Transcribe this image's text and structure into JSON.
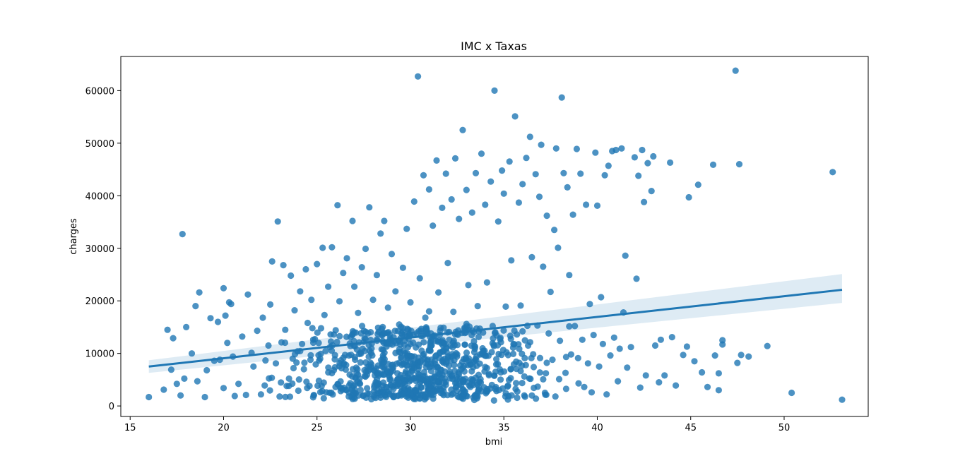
{
  "chart_data": {
    "type": "scatter",
    "title": "IMC x Taxas",
    "xlabel": "bmi",
    "ylabel": "charges",
    "xlim": [
      14.5,
      54.5
    ],
    "ylim": [
      -2000,
      66500
    ],
    "xticks": [
      15,
      20,
      25,
      30,
      35,
      40,
      45,
      50
    ],
    "yticks": [
      0,
      10000,
      20000,
      30000,
      40000,
      50000,
      60000
    ],
    "grid": false,
    "colors": {
      "points": "#1f77b4",
      "line": "#1f77b4",
      "band": "#1f77b4"
    },
    "regression": {
      "x": [
        16.0,
        53.1
      ],
      "y": [
        7500,
        22100
      ],
      "ci_lower": [
        6300,
        19600
      ],
      "ci_upper": [
        8700,
        25100
      ]
    },
    "points_sample_note": "",
    "points": [
      [
        16.0,
        1700
      ],
      [
        16.8,
        3100
      ],
      [
        17.0,
        14500
      ],
      [
        17.2,
        6900
      ],
      [
        17.3,
        12900
      ],
      [
        17.5,
        4200
      ],
      [
        17.7,
        2000
      ],
      [
        17.8,
        32700
      ],
      [
        17.9,
        5200
      ],
      [
        18.0,
        15000
      ],
      [
        18.3,
        10000
      ],
      [
        18.5,
        19000
      ],
      [
        18.6,
        4700
      ],
      [
        18.7,
        21600
      ],
      [
        19.0,
        1700
      ],
      [
        19.1,
        6800
      ],
      [
        19.3,
        16700
      ],
      [
        19.5,
        8600
      ],
      [
        19.7,
        16000
      ],
      [
        19.8,
        8800
      ],
      [
        20.0,
        3400
      ],
      [
        20.0,
        22400
      ],
      [
        20.1,
        17200
      ],
      [
        20.2,
        12000
      ],
      [
        20.3,
        19700
      ],
      [
        20.4,
        19400
      ],
      [
        20.5,
        9400
      ],
      [
        20.6,
        1900
      ],
      [
        20.8,
        4200
      ],
      [
        21.0,
        13200
      ],
      [
        21.2,
        2100
      ],
      [
        21.3,
        21200
      ],
      [
        21.5,
        10100
      ],
      [
        21.6,
        7500
      ],
      [
        21.8,
        14300
      ],
      [
        22.0,
        2200
      ],
      [
        22.1,
        16800
      ],
      [
        22.2,
        3900
      ],
      [
        22.4,
        11500
      ],
      [
        22.5,
        19300
      ],
      [
        22.6,
        27500
      ],
      [
        22.8,
        8100
      ],
      [
        22.9,
        35100
      ],
      [
        23.0,
        1800
      ],
      [
        23.1,
        12100
      ],
      [
        23.2,
        26800
      ],
      [
        23.3,
        14500
      ],
      [
        23.5,
        5200
      ],
      [
        23.6,
        24800
      ],
      [
        23.7,
        9000
      ],
      [
        23.8,
        18200
      ],
      [
        24.0,
        2900
      ],
      [
        24.1,
        21800
      ],
      [
        24.2,
        11800
      ],
      [
        24.3,
        7000
      ],
      [
        24.4,
        26000
      ],
      [
        24.5,
        15800
      ],
      [
        24.6,
        3800
      ],
      [
        24.7,
        20200
      ],
      [
        24.8,
        12600
      ],
      [
        25.0,
        27000
      ],
      [
        25.1,
        4800
      ],
      [
        25.2,
        9900
      ],
      [
        25.3,
        30100
      ],
      [
        25.4,
        17300
      ],
      [
        25.5,
        2600
      ],
      [
        25.6,
        22700
      ],
      [
        25.7,
        11200
      ],
      [
        25.8,
        30200
      ],
      [
        25.9,
        6800
      ],
      [
        26.0,
        14400
      ],
      [
        26.1,
        38200
      ],
      [
        26.2,
        19900
      ],
      [
        26.3,
        3400
      ],
      [
        26.4,
        25300
      ],
      [
        26.5,
        9700
      ],
      [
        26.6,
        28100
      ],
      [
        26.7,
        1800
      ],
      [
        26.8,
        13100
      ],
      [
        26.9,
        35200
      ],
      [
        27.0,
        22700
      ],
      [
        27.1,
        7300
      ],
      [
        27.2,
        17700
      ],
      [
        27.3,
        4200
      ],
      [
        27.4,
        26400
      ],
      [
        27.5,
        12200
      ],
      [
        27.6,
        29900
      ],
      [
        27.7,
        2300
      ],
      [
        27.8,
        37800
      ],
      [
        27.9,
        10100
      ],
      [
        28.0,
        20200
      ],
      [
        28.1,
        5800
      ],
      [
        28.2,
        24900
      ],
      [
        28.3,
        14100
      ],
      [
        28.4,
        32800
      ],
      [
        28.5,
        8400
      ],
      [
        28.6,
        35200
      ],
      [
        28.7,
        3600
      ],
      [
        28.8,
        18700
      ],
      [
        28.9,
        11800
      ],
      [
        29.0,
        28900
      ],
      [
        29.1,
        1700
      ],
      [
        29.2,
        21800
      ],
      [
        29.3,
        6200
      ],
      [
        29.4,
        15500
      ],
      [
        29.5,
        9300
      ],
      [
        29.6,
        26300
      ],
      [
        29.7,
        4100
      ],
      [
        29.8,
        33700
      ],
      [
        29.9,
        12800
      ],
      [
        30.0,
        19700
      ],
      [
        30.1,
        7400
      ],
      [
        30.2,
        38900
      ],
      [
        30.3,
        2800
      ],
      [
        30.4,
        62700
      ],
      [
        30.5,
        24300
      ],
      [
        30.6,
        10500
      ],
      [
        30.7,
        43900
      ],
      [
        30.8,
        16800
      ],
      [
        30.9,
        5100
      ],
      [
        31.0,
        41200
      ],
      [
        31.1,
        13800
      ],
      [
        31.2,
        34300
      ],
      [
        31.3,
        8600
      ],
      [
        31.4,
        46700
      ],
      [
        31.5,
        21600
      ],
      [
        31.6,
        3200
      ],
      [
        31.7,
        37700
      ],
      [
        31.8,
        11900
      ],
      [
        31.9,
        44200
      ],
      [
        32.0,
        27200
      ],
      [
        32.1,
        6500
      ],
      [
        32.2,
        39300
      ],
      [
        32.3,
        17900
      ],
      [
        32.4,
        47100
      ],
      [
        32.5,
        9800
      ],
      [
        32.6,
        35600
      ],
      [
        32.7,
        2400
      ],
      [
        32.8,
        52500
      ],
      [
        32.9,
        14700
      ],
      [
        33.0,
        41100
      ],
      [
        33.1,
        23000
      ],
      [
        33.2,
        7900
      ],
      [
        33.3,
        36800
      ],
      [
        33.4,
        12300
      ],
      [
        33.5,
        44300
      ],
      [
        33.6,
        19000
      ],
      [
        33.7,
        4600
      ],
      [
        33.8,
        48000
      ],
      [
        33.9,
        10400
      ],
      [
        34.0,
        38300
      ],
      [
        34.1,
        23500
      ],
      [
        34.2,
        6100
      ],
      [
        34.3,
        42700
      ],
      [
        34.4,
        15200
      ],
      [
        34.5,
        60000
      ],
      [
        34.6,
        8900
      ],
      [
        34.7,
        35100
      ],
      [
        34.8,
        12700
      ],
      [
        34.9,
        44800
      ],
      [
        35.0,
        40400
      ],
      [
        35.1,
        18900
      ],
      [
        35.2,
        3700
      ],
      [
        35.3,
        46500
      ],
      [
        35.4,
        27700
      ],
      [
        35.5,
        9900
      ],
      [
        35.6,
        55100
      ],
      [
        35.7,
        13600
      ],
      [
        35.8,
        38700
      ],
      [
        35.9,
        19100
      ],
      [
        36.0,
        42200
      ],
      [
        36.1,
        5600
      ],
      [
        36.2,
        47200
      ],
      [
        36.3,
        11500
      ],
      [
        36.4,
        51200
      ],
      [
        36.5,
        28300
      ],
      [
        36.6,
        7400
      ],
      [
        36.7,
        44100
      ],
      [
        36.8,
        15300
      ],
      [
        36.9,
        39800
      ],
      [
        37.0,
        49700
      ],
      [
        37.1,
        26500
      ],
      [
        37.2,
        2500
      ],
      [
        37.3,
        36200
      ],
      [
        37.4,
        13800
      ],
      [
        37.5,
        21700
      ],
      [
        37.6,
        8800
      ],
      [
        37.7,
        33500
      ],
      [
        37.8,
        49000
      ],
      [
        37.9,
        30100
      ],
      [
        38.0,
        12400
      ],
      [
        38.1,
        58700
      ],
      [
        38.2,
        44300
      ],
      [
        38.3,
        6300
      ],
      [
        38.4,
        41600
      ],
      [
        38.5,
        24900
      ],
      [
        38.6,
        9800
      ],
      [
        38.7,
        36400
      ],
      [
        38.8,
        15200
      ],
      [
        38.9,
        48900
      ],
      [
        39.0,
        4300
      ],
      [
        39.1,
        44200
      ],
      [
        39.2,
        12600
      ],
      [
        39.3,
        3600
      ],
      [
        39.4,
        38300
      ],
      [
        39.5,
        8100
      ],
      [
        39.6,
        19400
      ],
      [
        39.7,
        2600
      ],
      [
        39.8,
        13500
      ],
      [
        39.9,
        48200
      ],
      [
        40.0,
        38100
      ],
      [
        40.1,
        7500
      ],
      [
        40.2,
        20700
      ],
      [
        40.3,
        11800
      ],
      [
        40.4,
        43900
      ],
      [
        40.5,
        2200
      ],
      [
        40.6,
        45700
      ],
      [
        40.7,
        9600
      ],
      [
        40.8,
        48500
      ],
      [
        40.9,
        13000
      ],
      [
        41.0,
        48700
      ],
      [
        41.1,
        4700
      ],
      [
        41.2,
        10900
      ],
      [
        41.3,
        49000
      ],
      [
        41.4,
        17800
      ],
      [
        41.5,
        28600
      ],
      [
        41.6,
        7300
      ],
      [
        41.8,
        11200
      ],
      [
        42.0,
        47300
      ],
      [
        42.1,
        24200
      ],
      [
        42.2,
        43800
      ],
      [
        42.3,
        3500
      ],
      [
        42.4,
        48700
      ],
      [
        42.5,
        38800
      ],
      [
        42.6,
        5800
      ],
      [
        42.7,
        46200
      ],
      [
        42.9,
        40900
      ],
      [
        43.0,
        47500
      ],
      [
        43.1,
        11500
      ],
      [
        43.3,
        4500
      ],
      [
        43.4,
        12600
      ],
      [
        43.6,
        5800
      ],
      [
        43.9,
        46300
      ],
      [
        44.0,
        13100
      ],
      [
        44.2,
        3900
      ],
      [
        44.6,
        9700
      ],
      [
        44.8,
        11300
      ],
      [
        44.9,
        39700
      ],
      [
        45.2,
        8500
      ],
      [
        45.4,
        42100
      ],
      [
        45.6,
        6400
      ],
      [
        45.9,
        3600
      ],
      [
        46.2,
        45900
      ],
      [
        46.3,
        9600
      ],
      [
        46.5,
        6200
      ],
      [
        46.7,
        12500
      ],
      [
        47.4,
        63800
      ],
      [
        47.6,
        46000
      ],
      [
        47.7,
        9700
      ],
      [
        48.1,
        9400
      ],
      [
        49.1,
        11400
      ],
      [
        50.4,
        2500
      ],
      [
        52.6,
        44500
      ],
      [
        53.1,
        1200
      ],
      [
        47.5,
        8200
      ],
      [
        46.5,
        3000
      ],
      [
        46.7,
        11700
      ],
      [
        36.0,
        14200
      ],
      [
        33.0,
        15600
      ],
      [
        31.0,
        18000
      ]
    ],
    "dense_band": {
      "x_range": [
        17.0,
        47.0
      ],
      "y_range": [
        1000,
        14500
      ],
      "count": 800
    }
  }
}
